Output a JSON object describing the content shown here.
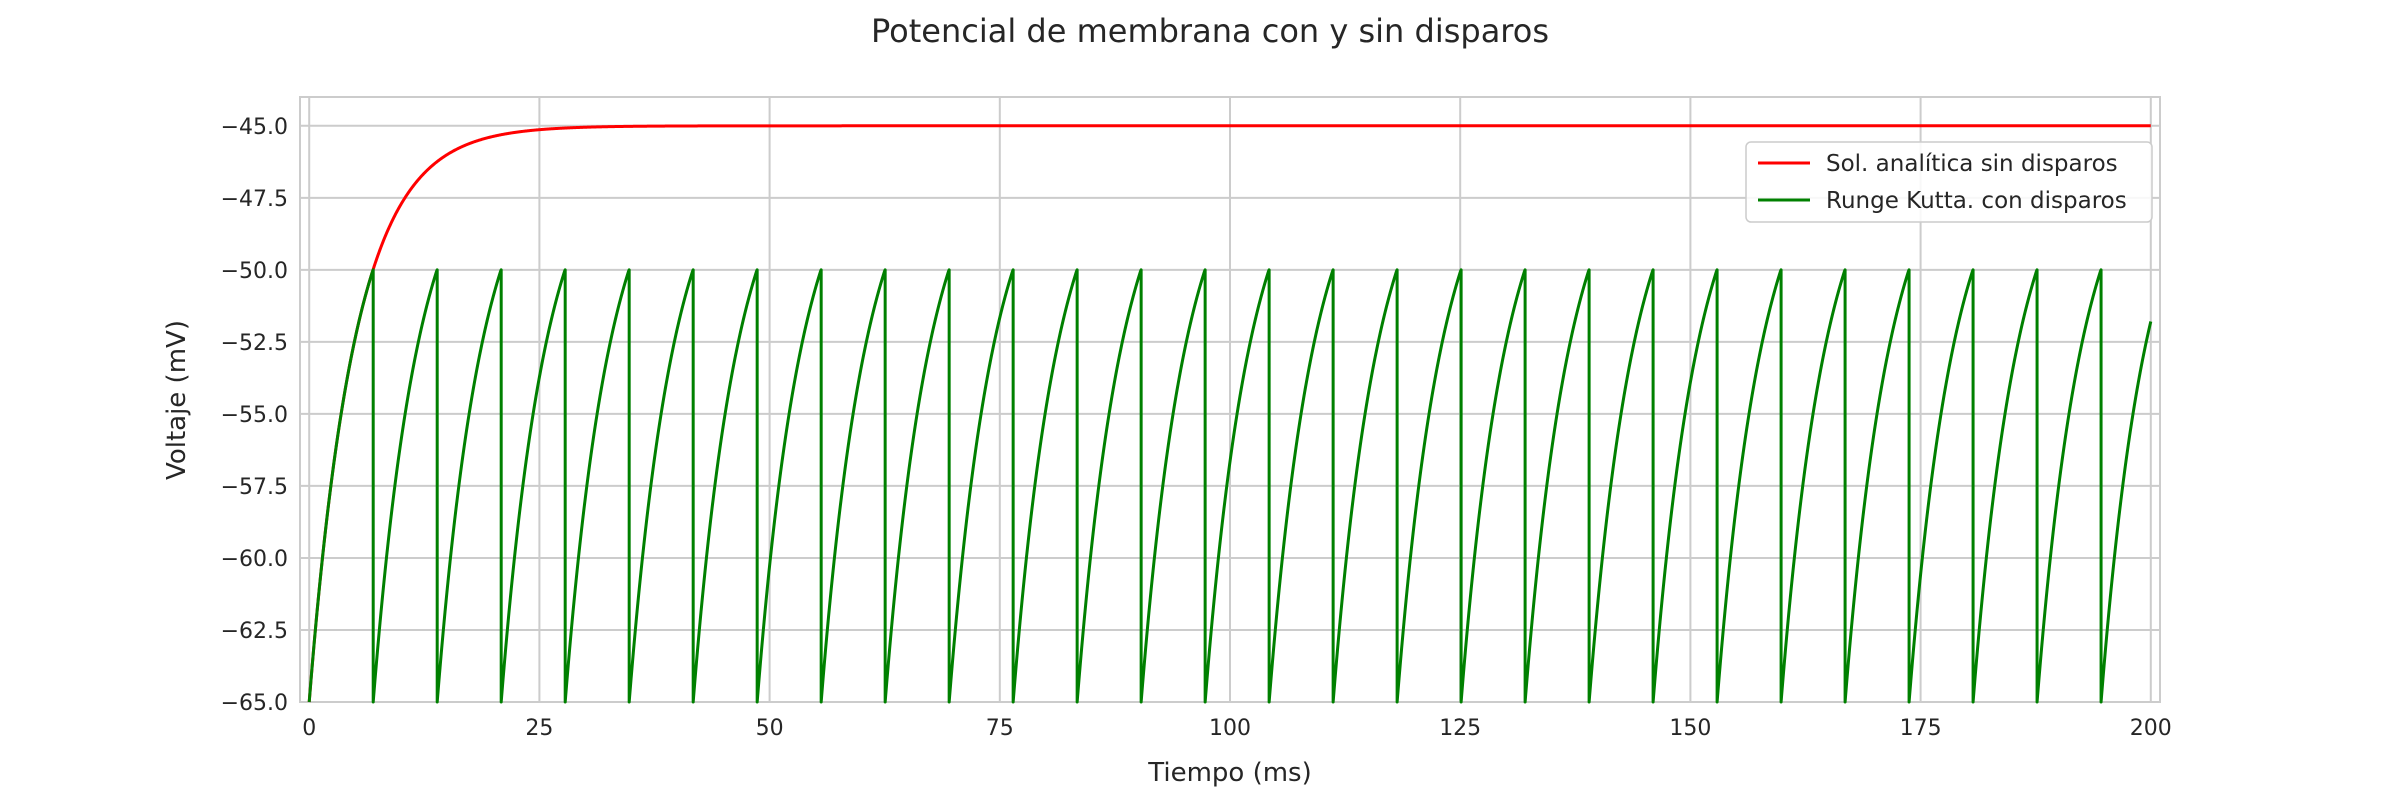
{
  "chart_data": {
    "type": "line",
    "title": "Potencial de membrana con y sin disparos",
    "xlabel": "Tiempo (ms)",
    "ylabel": "Voltaje (mV)",
    "xlim": [
      -1,
      201
    ],
    "ylim": [
      -65,
      -44
    ],
    "x_ticks": [
      0,
      25,
      50,
      75,
      100,
      125,
      150,
      175,
      200
    ],
    "y_ticks": [
      -65.0,
      -62.5,
      -60.0,
      -57.5,
      -55.0,
      -52.5,
      -50.0,
      -47.5,
      -45.0
    ],
    "grid": true,
    "legend_position": "upper-right",
    "model": {
      "v_rest": -65,
      "v_inf": -45,
      "tau_ms": 5,
      "v_threshold": -50,
      "v_reset": -65,
      "t_end": 200
    },
    "series": [
      {
        "name": "Sol. analítica sin disparos",
        "color": "#ff0000"
      },
      {
        "name": "Runge Kutta. con disparos",
        "color": "#008000"
      }
    ]
  }
}
